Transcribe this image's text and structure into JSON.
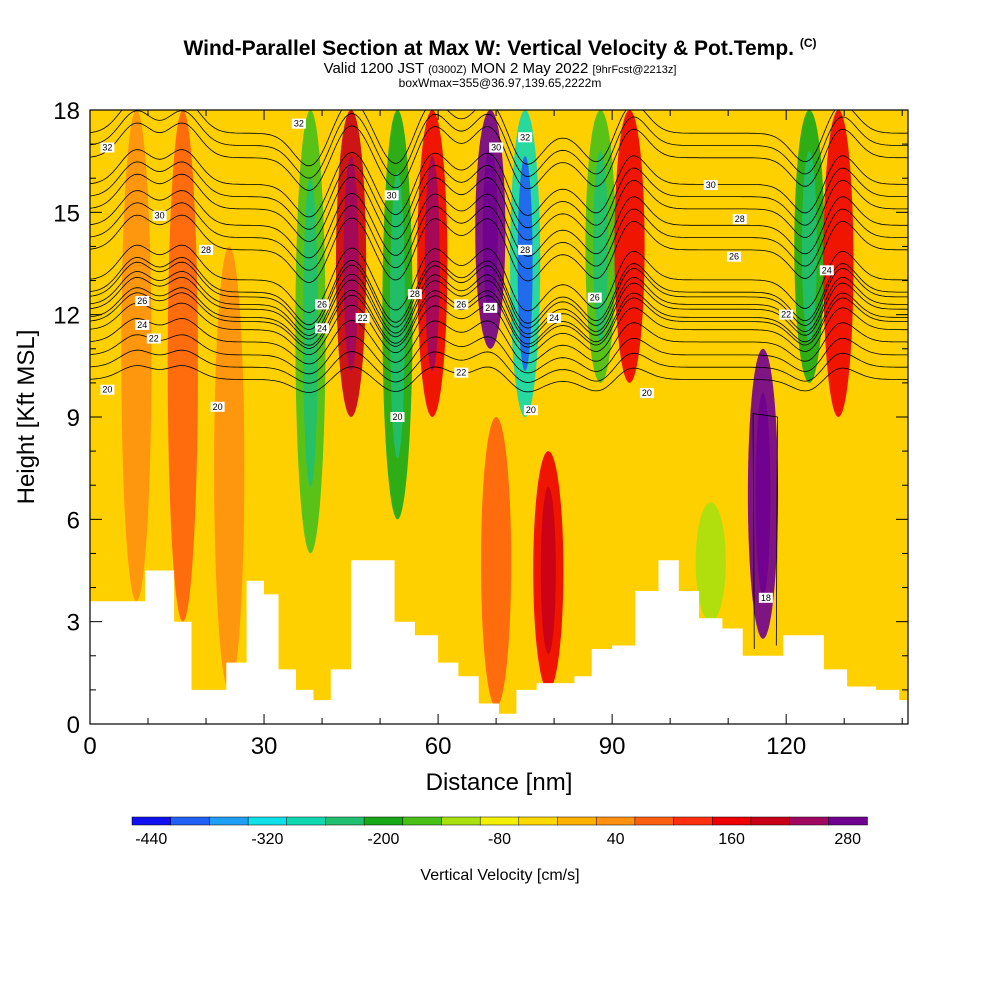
{
  "header": {
    "title": "Wind-Parallel Section at Max W: Vertical Velocity & Pot.Temp.",
    "copyright": "(C)",
    "valid_main": "Valid 1200 JST",
    "valid_utc": "(0300Z)",
    "valid_date": "MON 2 May 2022",
    "forecast_tag": "[9hrFcst@2213z]",
    "box_info": "boxWmax=355@36.97,139.65,2222m"
  },
  "chart_data": {
    "type": "heatmap",
    "xlabel": "Distance [nm]",
    "ylabel": "Height [Kft MSL]",
    "xlim": [
      0,
      141
    ],
    "ylim": [
      0,
      18
    ],
    "x_ticks": [
      0,
      30,
      60,
      90,
      120
    ],
    "y_ticks": [
      0,
      3,
      6,
      9,
      12,
      15,
      18
    ],
    "colorbar": {
      "label": "Vertical Velocity [cm/s]",
      "tick_labels": [
        "-440",
        "-320",
        "-200",
        "-80",
        "40",
        "160",
        "280"
      ],
      "colors": [
        "#1010f0",
        "#2060f5",
        "#20a0f5",
        "#10e0e8",
        "#10d8b0",
        "#20c070",
        "#18a818",
        "#48c018",
        "#a8e010",
        "#f0f000",
        "#ffd800",
        "#ffb000",
        "#ff9010",
        "#ff6010",
        "#ff3010",
        "#ee0000",
        "#c80018",
        "#a00860",
        "#700090"
      ]
    },
    "terrain_kft": [
      [
        0,
        3.6
      ],
      [
        8,
        3.6
      ],
      [
        11,
        4.5
      ],
      [
        13,
        4.5
      ],
      [
        16,
        3.0
      ],
      [
        19,
        1.0
      ],
      [
        22,
        1.0
      ],
      [
        25,
        1.8
      ],
      [
        29,
        4.2
      ],
      [
        31,
        3.8
      ],
      [
        34,
        1.6
      ],
      [
        37,
        1.0
      ],
      [
        40,
        0.7
      ],
      [
        43,
        1.6
      ],
      [
        47,
        4.8
      ],
      [
        51,
        4.8
      ],
      [
        54,
        3.0
      ],
      [
        58,
        2.6
      ],
      [
        62,
        1.8
      ],
      [
        65,
        1.4
      ],
      [
        69,
        0.6
      ],
      [
        72,
        0.3
      ],
      [
        75,
        1.0
      ],
      [
        79,
        1.2
      ],
      [
        82,
        1.2
      ],
      [
        85,
        1.4
      ],
      [
        88,
        2.2
      ],
      [
        92,
        2.3
      ],
      [
        96,
        3.9
      ],
      [
        100,
        4.8
      ],
      [
        103,
        3.9
      ],
      [
        107,
        3.1
      ],
      [
        111,
        2.8
      ],
      [
        114,
        2.0
      ],
      [
        118,
        2.0
      ],
      [
        121,
        2.6
      ],
      [
        125,
        2.6
      ],
      [
        128,
        1.6
      ],
      [
        133,
        1.1
      ],
      [
        138,
        1.0
      ],
      [
        141,
        0.7
      ]
    ],
    "velocity_cells": [
      {
        "x": 8,
        "y_range": [
          3.6,
          18
        ],
        "w": 35
      },
      {
        "x": 16,
        "y_range": [
          3,
          18
        ],
        "w": 95
      },
      {
        "x": 24,
        "y_range": [
          1,
          14
        ],
        "w": 40
      },
      {
        "x": 38,
        "y_range": [
          5,
          18
        ],
        "w": -165
      },
      {
        "x": 45,
        "y_range": [
          9,
          18
        ],
        "w": 185
      },
      {
        "x": 53,
        "y_range": [
          6,
          18
        ],
        "w": -185
      },
      {
        "x": 59,
        "y_range": [
          9,
          18
        ],
        "w": 175
      },
      {
        "x": 69,
        "y_range": [
          11,
          18
        ],
        "w": 285
      },
      {
        "x": 70,
        "y_range": [
          0.5,
          9
        ],
        "w": 95
      },
      {
        "x": 75,
        "y_range": [
          9,
          18
        ],
        "w": -300
      },
      {
        "x": 79,
        "y_range": [
          1,
          8
        ],
        "w": 155
      },
      {
        "x": 88,
        "y_range": [
          10,
          18
        ],
        "w": -165
      },
      {
        "x": 93,
        "y_range": [
          10,
          18
        ],
        "w": 150
      },
      {
        "x": 107,
        "y_range": [
          3,
          6.5
        ],
        "w": -110
      },
      {
        "x": 116,
        "y_range": [
          2.5,
          11
        ],
        "w": 355
      },
      {
        "x": 124,
        "y_range": [
          10,
          18
        ],
        "w": -185
      },
      {
        "x": 129,
        "y_range": [
          9,
          18
        ],
        "w": 145
      }
    ],
    "theta_contours": [
      {
        "label": "18",
        "label_at": [
          116.5,
          3.7
        ]
      },
      {
        "label": "20",
        "base": 10.1,
        "labels_at": [
          [
            3,
            9.8
          ],
          [
            22,
            9.3
          ],
          [
            53,
            9.0
          ],
          [
            76,
            9.2
          ],
          [
            96,
            9.7
          ]
        ]
      },
      {
        "label": "22",
        "base": 11.2,
        "labels_at": [
          [
            11,
            11.3
          ],
          [
            47,
            11.9
          ],
          [
            64,
            10.3
          ],
          [
            120,
            12.0
          ]
        ]
      },
      {
        "label": "24",
        "base": 11.8,
        "labels_at": [
          [
            9,
            11.7
          ],
          [
            40,
            11.6
          ],
          [
            69,
            12.2
          ],
          [
            80,
            11.9
          ],
          [
            127,
            13.3
          ]
        ]
      },
      {
        "label": "26",
        "base": 12.3,
        "labels_at": [
          [
            9,
            12.4
          ],
          [
            40,
            12.3
          ],
          [
            64,
            12.3
          ],
          [
            87,
            12.5
          ],
          [
            111,
            13.7
          ]
        ]
      },
      {
        "label": "28",
        "base": 13.9,
        "labels_at": [
          [
            20,
            13.9
          ],
          [
            56,
            12.6
          ],
          [
            75,
            13.9
          ],
          [
            112,
            14.8
          ]
        ]
      },
      {
        "label": "30",
        "base": 15.1,
        "labels_at": [
          [
            12,
            14.9
          ],
          [
            52,
            15.5
          ],
          [
            70,
            16.9
          ],
          [
            107,
            15.8
          ]
        ]
      },
      {
        "label": "32",
        "base": 16.6,
        "labels_at": [
          [
            3,
            16.9
          ],
          [
            36,
            17.6
          ],
          [
            75,
            17.2
          ]
        ]
      }
    ]
  }
}
